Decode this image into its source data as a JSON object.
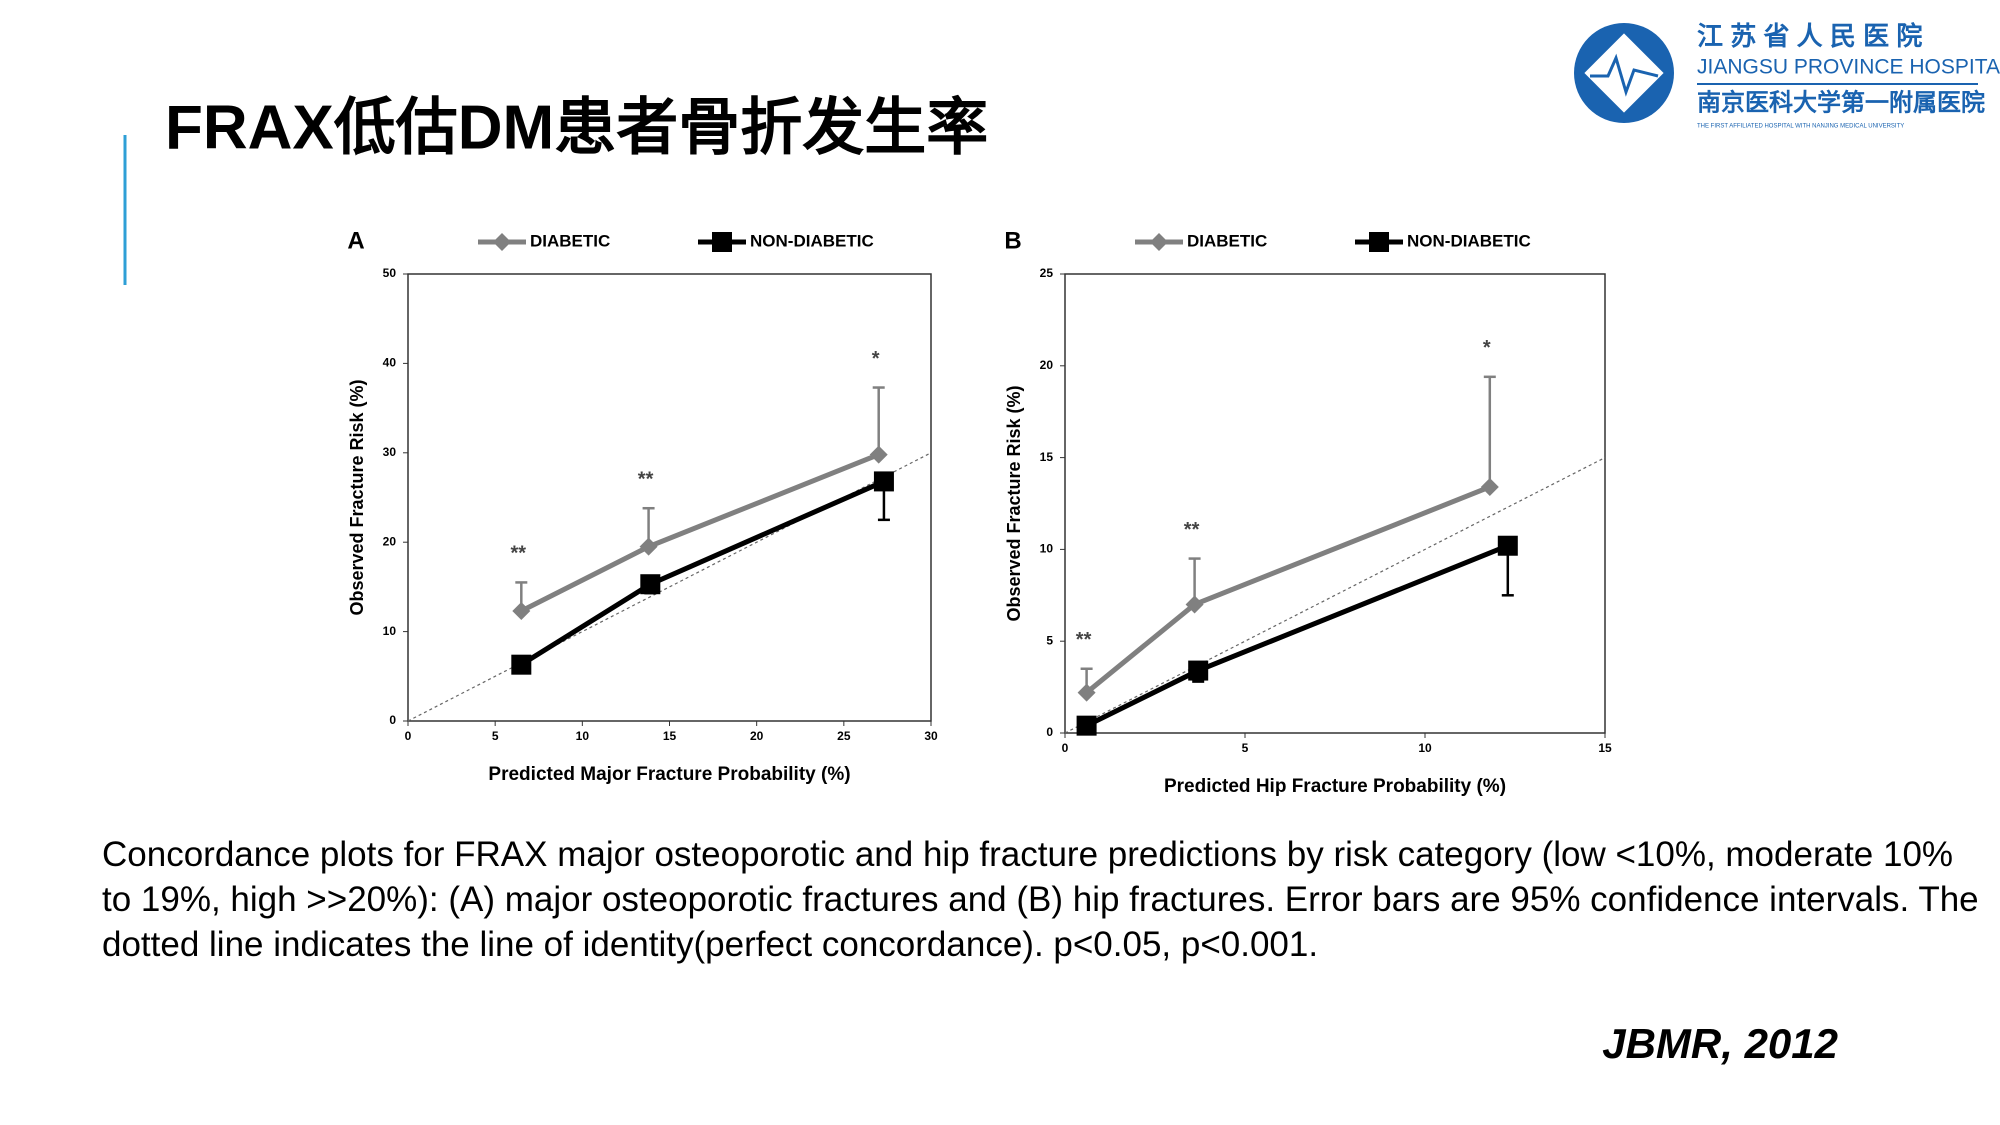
{
  "title": "FRAX低估DM患者骨折发生率",
  "logo": {
    "name_cn": "江 苏 省 人 民 医 院",
    "name_en": "JIANGSU PROVINCE HOSPITAL",
    "affiliation_cn": "南京医科大学第一附属医院",
    "affiliation_en": "THE FIRST AFFILIATED HOSPITAL WITH NANJING MEDICAL UNIVERSITY"
  },
  "chart_data": [
    {
      "type": "line",
      "panel": "A",
      "x_label": "Predicted Major Fracture Probability (%)",
      "y_label": "Observed Fracture Risk (%)",
      "xlim": [
        0,
        30
      ],
      "xticks": [
        0,
        5,
        10,
        15,
        20,
        25,
        30
      ],
      "ylim": [
        0,
        50
      ],
      "yticks": [
        0,
        10,
        20,
        30,
        40,
        50
      ],
      "identity_line": true,
      "annotations": [
        "**",
        "**",
        "*"
      ],
      "series": [
        {
          "name": "DIABETIC",
          "color": "#808080",
          "marker": "diamond",
          "error_direction": "up",
          "x": [
            6.5,
            13.8,
            27.0
          ],
          "values": [
            12.3,
            19.5,
            29.8
          ],
          "errors": [
            3.2,
            4.3,
            7.5
          ]
        },
        {
          "name": "NON-DIABETIC",
          "color": "#000000",
          "marker": "square",
          "error_direction": "down",
          "x": [
            6.5,
            13.9,
            27.3
          ],
          "values": [
            6.3,
            15.3,
            26.8
          ],
          "errors": [
            0.5,
            1.0,
            4.3
          ]
        }
      ]
    },
    {
      "type": "line",
      "panel": "B",
      "x_label": "Predicted Hip Fracture Probability (%)",
      "y_label": "Observed Fracture Risk (%)",
      "xlim": [
        0,
        15
      ],
      "xticks": [
        0,
        5,
        10,
        15
      ],
      "ylim": [
        0,
        25
      ],
      "yticks": [
        0,
        5,
        10,
        15,
        20,
        25
      ],
      "identity_line": true,
      "annotations": [
        "**",
        "**",
        "*"
      ],
      "series": [
        {
          "name": "DIABETIC",
          "color": "#808080",
          "marker": "diamond",
          "error_direction": "up",
          "x": [
            0.6,
            3.6,
            11.8
          ],
          "values": [
            2.2,
            7.0,
            13.4
          ],
          "errors": [
            1.3,
            2.5,
            6.0
          ]
        },
        {
          "name": "NON-DIABETIC",
          "color": "#000000",
          "marker": "square",
          "error_direction": "down",
          "x": [
            0.6,
            3.7,
            12.3
          ],
          "values": [
            0.4,
            3.4,
            10.2
          ],
          "errors": [
            0.2,
            0.6,
            2.7
          ]
        }
      ]
    }
  ],
  "caption": "Concordance plots for FRAX major osteoporotic and hip fracture predictions by risk category (low <10%, moderate 10% to 19%, high >>20%): (A) major osteoporotic fractures and (B) hip fractures. Error bars are 95% confidence intervals. The dotted line indicates the line of identity(perfect concordance). p<0.05, p<0.001.",
  "citation": "JBMR, 2012"
}
